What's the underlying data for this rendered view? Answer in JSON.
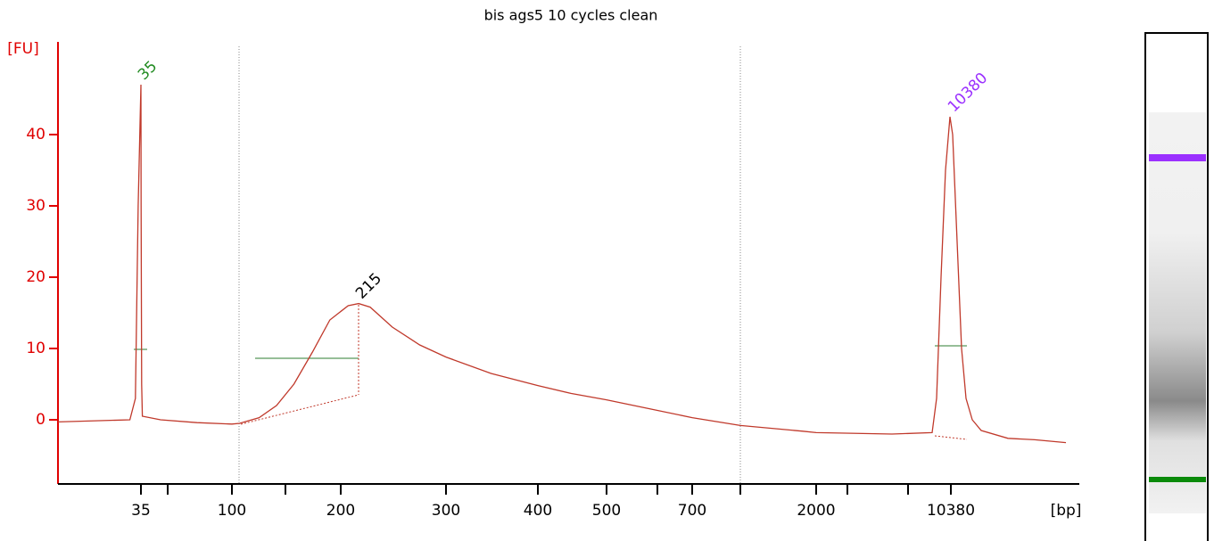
{
  "chart_data": {
    "type": "line",
    "title": "bis ags5 10 cycles clean",
    "y_label": "[FU]",
    "x_label": "[bp]",
    "color": "#c0392b",
    "axis_color": "#e00000",
    "x": [
      20,
      33,
      34,
      34.5,
      35,
      35.1,
      35.5,
      36,
      49,
      75,
      100,
      107,
      125,
      141,
      157,
      174,
      190,
      207,
      217,
      228,
      249,
      275,
      300,
      349,
      400,
      448,
      500,
      604,
      700,
      1205,
      1860,
      2000,
      6718,
      9215,
      9492,
      9770,
      10047,
      10325,
      10449,
      10621,
      10794,
      10966,
      11207,
      11552,
      12587,
      13621,
      14828
    ],
    "values": [
      -0.3,
      0,
      3,
      30,
      47,
      30,
      5,
      0.5,
      0,
      -0.4,
      -0.6,
      -0.5,
      0.3,
      2,
      5,
      9.5,
      14,
      16,
      16.3,
      15.8,
      13,
      10.5,
      8.8,
      6.5,
      4.8,
      3.7,
      2.8,
      1.5,
      0.3,
      -0.8,
      -1.6,
      -1.8,
      -2,
      -1.8,
      3,
      20,
      35,
      42.5,
      40,
      25,
      10,
      3,
      0,
      -1.5,
      -2.6,
      -2.8,
      -3.2
    ],
    "xlim": [
      20,
      15000
    ],
    "xticks": [
      35,
      100,
      200,
      300,
      400,
      500,
      700,
      2000,
      10380
    ],
    "ylim": [
      -9,
      52
    ],
    "yticks": [
      0,
      10,
      20,
      30,
      40
    ],
    "annotations": [
      {
        "text": "35",
        "x": 35,
        "y": 47,
        "color": "#228b22"
      },
      {
        "text": "215",
        "x": 217,
        "y": 16.3,
        "color": "#000000"
      },
      {
        "text": "10380",
        "x": 10380,
        "y": 42.5,
        "color": "#9b30ff"
      }
    ]
  }
}
